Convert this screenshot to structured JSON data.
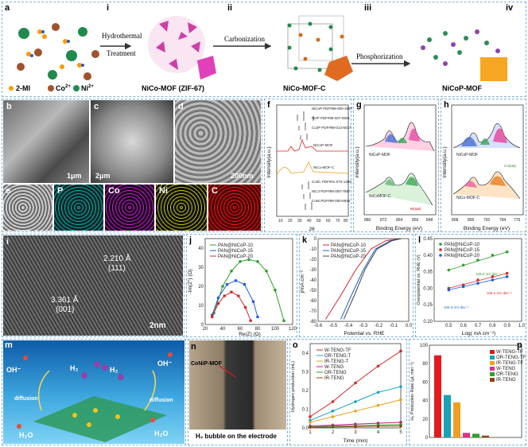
{
  "top": {
    "label_a": "a",
    "label_i": "i",
    "label_ii": "ii",
    "label_iii": "iii",
    "label_iv": "iv",
    "step1": "Hydrothermal",
    "step1b": "Treatment",
    "step2": "Carbonization",
    "step3": "Phosphorization",
    "mat1": "NiCo-MOF (ZIF-67)",
    "mat2": "NiCo-MOF-C",
    "mat3": "NiCoP-MOF",
    "legend_2mi": "2-MI",
    "legend_co": "Co",
    "legend_co_sup": "2+",
    "legend_ni": "Ni",
    "legend_ni_sup": "2+"
  },
  "sem": {
    "b": "b",
    "c": "c",
    "d": "d",
    "e": "e",
    "scale_b": "1μm",
    "scale_c": "2μm",
    "scale_d": "200nm",
    "map_p": "P",
    "map_co": "Co",
    "map_ni": "Ni",
    "map_c": "C"
  },
  "xrd": {
    "label": "f",
    "ylabel": "Intensity(a.u.)",
    "xlabel": "2θ",
    "ticks": [
      "10",
      "20",
      "30",
      "40",
      "50",
      "60",
      "70",
      "80"
    ],
    "refs": [
      "NiCoP PDF#98-000-3697",
      "Ni2P PDF#98-007-0921",
      "Co2P PDF#98-013-5027"
    ],
    "s1": "NiCoP-MOF",
    "s2": "NiCo-MOF-C",
    "refs2": [
      "Co3C PDF#01-072-1369",
      "NiC3 PDF#98-000-7597",
      "CoNi PDF#98-000-6945"
    ]
  },
  "xps_g": {
    "label": "g",
    "ylabel": "Intensity(a.u.)",
    "xlabel": "Binding Energy (eV)",
    "top": "NiCoP-MOF",
    "bot": "NiCoMOF-C",
    "ticks": [
      "880",
      "872",
      "864",
      "856",
      "848"
    ],
    "sat": "Ni(sat)"
  },
  "xps_h": {
    "label": "h",
    "ylabel": "Intensity(a.u.)",
    "xlabel": "Binding Energy (eV)",
    "top": "NiCoP-MOF",
    "bot": "NiCo-MOF-C",
    "ticks": [
      "808",
      "800",
      "792",
      "784",
      "776"
    ],
    "sat": "Co(sat)"
  },
  "tem": {
    "label": "i",
    "d1": "2.210 Å",
    "d1b": "(111)",
    "d2": "3.361 Å",
    "d2b": "(001)",
    "scale": "2nm"
  },
  "eis": {
    "label": "j",
    "ylabel": "-Im(Z'') (Ω)",
    "xlabel": "Re(Z) (Ω)",
    "xticks": [
      "20",
      "40",
      "60",
      "80",
      "100",
      "120"
    ],
    "yticks": [
      "0",
      "10",
      "20",
      "30",
      "40"
    ],
    "series": [
      "PAN@NiCoP-10",
      "PAN@NiCoP-15",
      "PAN@NiCoP-20"
    ]
  },
  "lsv": {
    "label": "k",
    "ylabel": "j/mA cm⁻²",
    "xlabel": "Potential vs. RHE",
    "xticks": [
      "-0.6",
      "-0.5",
      "-0.4",
      "-0.3",
      "-0.2",
      "-0.1",
      "0.0"
    ],
    "yticks": [
      "0",
      "-10",
      "-20",
      "-30",
      "-40",
      "-50",
      "-60",
      "-70",
      "-80"
    ],
    "series": [
      "PAN@NiCoP-10",
      "PAN@NiCoP-15",
      "PAN@NiCoP-20"
    ]
  },
  "tafel": {
    "label": "l",
    "ylabel": "Overpotential vs. RHE (V)",
    "xlabel": "Log( mA cm⁻²)",
    "xticks": [
      "0.5",
      "0.6",
      "0.7",
      "0.8",
      "0.9",
      "1.0"
    ],
    "yticks": [
      "0.20",
      "0.25",
      "0.30",
      "0.35",
      "0.40",
      "0.45"
    ],
    "series": [
      "PAN@NiCoP-10",
      "PAN@NiCoP-15",
      "PAN@NiCoP-20"
    ],
    "s1": "128.8 mV dec⁻¹",
    "s2": "106.2 mV dec⁻¹",
    "s3": "104.3 mV dec⁻¹"
  },
  "mech": {
    "label": "m",
    "h2": "H₂",
    "oh": "OH⁻",
    "h2o": "H₂O",
    "diff": "diffusion"
  },
  "photo": {
    "label": "n",
    "tag": "CoNiP-MOF",
    "caption": "H₂ bubble on the electrode"
  },
  "h2prod": {
    "label": "o",
    "ylabel": "Hydrogen production (mL)",
    "xlabel": "Time (min)",
    "xticks": [
      "1",
      "2",
      "3",
      "4",
      "5"
    ],
    "yticks": [
      "0.0",
      "0.1",
      "0.2",
      "0.3",
      "0.4"
    ],
    "series": [
      "W-TENG-TF",
      "OR-TENG-T",
      "IR-TENG-T",
      "W-TENG",
      "OR-TENG",
      "IR-TENG"
    ]
  },
  "rate": {
    "label": "p",
    "ylabel": "H₂ Production Rate (μL min⁻¹)",
    "yticks": [
      "0",
      "20",
      "40",
      "60",
      "80",
      "100"
    ],
    "series": [
      "W-TENG-TF",
      "OR-TENG-TF",
      "IR-TENG-TF",
      "W-TENG",
      "OR-TENG",
      "IR-TENG"
    ]
  },
  "chart_data": [
    {
      "type": "line",
      "title": "",
      "xlabel": "Re(Z) (Ω)",
      "ylabel": "-Im(Z'') (Ω)",
      "xlim": [
        20,
        120
      ],
      "ylim": [
        0,
        45
      ],
      "series": [
        {
          "name": "PAN@NiCoP-10",
          "color": "#2ca02c",
          "x": [
            30,
            40,
            50,
            60,
            70,
            80,
            90,
            100,
            110
          ],
          "y": [
            6,
            20,
            28,
            33,
            34,
            33,
            28,
            18,
            2
          ]
        },
        {
          "name": "PAN@NiCoP-15",
          "color": "#1f5fd6",
          "x": [
            28,
            35,
            45,
            55,
            65,
            75,
            80
          ],
          "y": [
            5,
            14,
            21,
            23,
            21,
            12,
            4
          ]
        },
        {
          "name": "PAN@NiCoP-20",
          "color": "#d62728",
          "x": [
            28,
            35,
            42,
            50,
            58,
            66,
            72
          ],
          "y": [
            4,
            11,
            15,
            17,
            15,
            9,
            2
          ]
        }
      ]
    },
    {
      "type": "line",
      "title": "",
      "xlabel": "Potential vs. RHE",
      "ylabel": "j/mA cm⁻²",
      "xlim": [
        -0.6,
        0.0
      ],
      "ylim": [
        -80,
        0
      ],
      "series": [
        {
          "name": "PAN@NiCoP-10",
          "color": "#d62728",
          "x": [
            -0.55,
            -0.45,
            -0.35,
            -0.25,
            -0.15,
            -0.05
          ],
          "y": [
            -78,
            -55,
            -30,
            -10,
            -2,
            0
          ]
        },
        {
          "name": "PAN@NiCoP-15",
          "color": "#1f5fd6",
          "x": [
            -0.45,
            -0.38,
            -0.3,
            -0.22,
            -0.12,
            -0.05
          ],
          "y": [
            -78,
            -55,
            -30,
            -10,
            -2,
            0
          ]
        },
        {
          "name": "PAN@NiCoP-20",
          "color": "#444444",
          "x": [
            -0.43,
            -0.36,
            -0.29,
            -0.21,
            -0.11,
            -0.05
          ],
          "y": [
            -78,
            -55,
            -30,
            -10,
            -2,
            0
          ]
        }
      ]
    },
    {
      "type": "scatter",
      "title": "",
      "xlabel": "Log( mA cm⁻²)",
      "ylabel": "Overpotential vs. RHE (V)",
      "xlim": [
        0.4,
        1.0
      ],
      "ylim": [
        0.2,
        0.45
      ],
      "series": [
        {
          "name": "PAN@NiCoP-10",
          "color": "#2ca02c",
          "x": [
            0.5,
            0.6,
            0.7,
            0.8,
            0.9
          ],
          "y": [
            0.355,
            0.37,
            0.385,
            0.4,
            0.41
          ]
        },
        {
          "name": "PAN@NiCoP-15",
          "color": "#d62728",
          "x": [
            0.5,
            0.6,
            0.7,
            0.8,
            0.9
          ],
          "y": [
            0.3,
            0.31,
            0.325,
            0.335,
            0.345
          ]
        },
        {
          "name": "PAN@NiCoP-20",
          "color": "#1f5fd6",
          "x": [
            0.5,
            0.6,
            0.7,
            0.8,
            0.9
          ],
          "y": [
            0.295,
            0.305,
            0.315,
            0.325,
            0.335
          ]
        }
      ]
    },
    {
      "type": "line",
      "title": "",
      "xlabel": "Time (min)",
      "ylabel": "Hydrogen production (mL)",
      "xlim": [
        1,
        5
      ],
      "ylim": [
        0,
        0.45
      ],
      "series": [
        {
          "name": "W-TENG-TF",
          "color": "#d62728",
          "x": [
            1,
            2,
            3,
            4,
            5
          ],
          "y": [
            0.06,
            0.14,
            0.24,
            0.33,
            0.41
          ]
        },
        {
          "name": "OR-TENG-T",
          "color": "#17a2c8",
          "x": [
            1,
            2,
            3,
            4,
            5
          ],
          "y": [
            0.04,
            0.09,
            0.14,
            0.19,
            0.22
          ]
        },
        {
          "name": "IR-TENG-T",
          "color": "#e8a317",
          "x": [
            1,
            2,
            3,
            4,
            5
          ],
          "y": [
            0.03,
            0.06,
            0.09,
            0.12,
            0.15
          ]
        },
        {
          "name": "W-TENG",
          "color": "#c71585",
          "x": [
            1,
            2,
            3,
            4,
            5
          ],
          "y": [
            0.01,
            0.015,
            0.02,
            0.025,
            0.03
          ]
        },
        {
          "name": "OR-TENG",
          "color": "#2ca02c",
          "x": [
            1,
            2,
            3,
            4,
            5
          ],
          "y": [
            0.005,
            0.01,
            0.012,
            0.015,
            0.018
          ]
        },
        {
          "name": "IR-TENG",
          "color": "#8b4513",
          "x": [
            1,
            2,
            3,
            4,
            5
          ],
          "y": [
            0.003,
            0.005,
            0.007,
            0.009,
            0.01
          ]
        }
      ]
    },
    {
      "type": "bar",
      "title": "",
      "ylabel": "H₂ Production Rate (μL min⁻¹)",
      "ylim": [
        0,
        100
      ],
      "categories": [
        "W-TENG-TF",
        "OR-TENG-TF",
        "IR-TENG-TF",
        "W-TENG",
        "OR-TENG",
        "IR-TENG"
      ],
      "values": [
        89,
        46,
        38,
        5,
        4,
        2
      ],
      "colors": [
        "#e41a1c",
        "#17a2b8",
        "#f0a020",
        "#e0308a",
        "#2ca02c",
        "#8b4513"
      ]
    }
  ]
}
